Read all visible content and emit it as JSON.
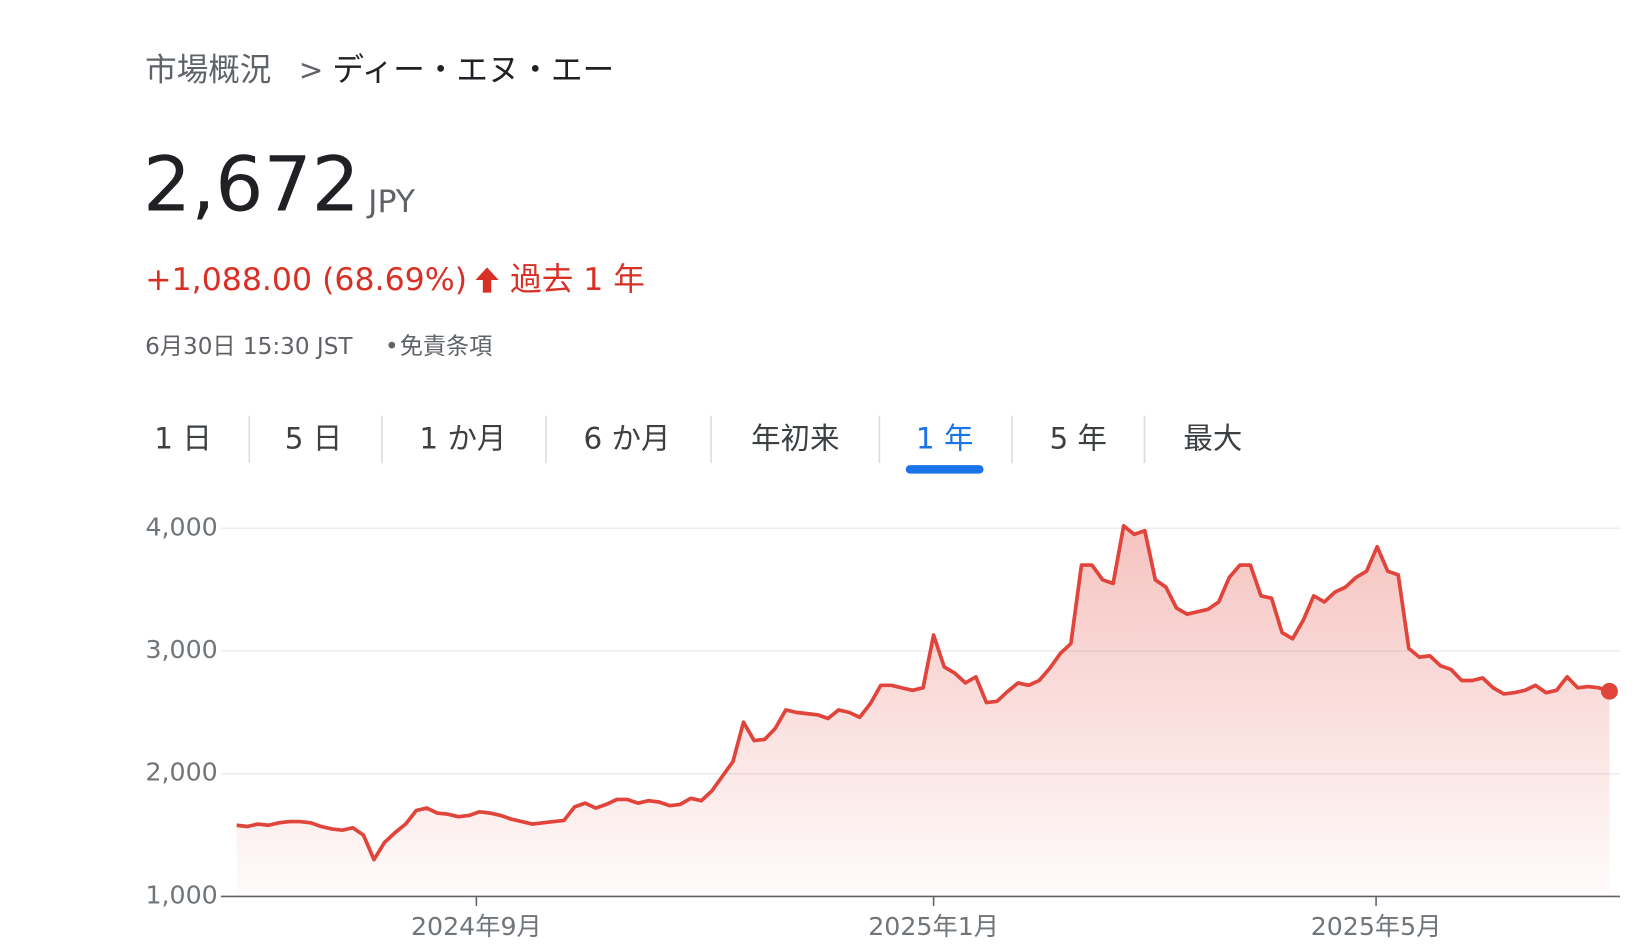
{
  "breadcrumb": {
    "parent": "市場概況",
    "separator": ">",
    "current": "ディー・エヌ・エー"
  },
  "price": "2,672",
  "currency": "JPY",
  "change": "+1,088.00 (68.69%)",
  "period": "過去 1 年",
  "timestamp": "6月30日 15:30 JST",
  "bullet": "•",
  "disclaimer": "免責条項",
  "tabs": [
    "1 日",
    "5 日",
    "1 か月",
    "6 か月",
    "年初来",
    "1 年",
    "5 年",
    "最大"
  ],
  "selected_tab": 5,
  "chart_data": {
    "type": "line",
    "color": "#e0443a",
    "values": [
      1580,
      1570,
      1590,
      1580,
      1600,
      1610,
      1610,
      1600,
      1570,
      1550,
      1540,
      1560,
      1500,
      1300,
      1440,
      1520,
      1590,
      1700,
      1720,
      1680,
      1670,
      1650,
      1660,
      1690,
      1680,
      1660,
      1630,
      1610,
      1590,
      1600,
      1610,
      1620,
      1730,
      1760,
      1720,
      1750,
      1790,
      1790,
      1760,
      1780,
      1770,
      1740,
      1750,
      1800,
      1780,
      1860,
      1980,
      2100,
      2420,
      2270,
      2280,
      2370,
      2520,
      2500,
      2490,
      2480,
      2450,
      2520,
      2500,
      2460,
      2570,
      2720,
      2720,
      2700,
      2680,
      2700,
      3130,
      2870,
      2820,
      2740,
      2790,
      2580,
      2590,
      2670,
      2740,
      2720,
      2760,
      2860,
      2980,
      3060,
      3700,
      3700,
      3580,
      3550,
      4020,
      3950,
      3980,
      3580,
      3520,
      3350,
      3300,
      3320,
      3340,
      3400,
      3600,
      3700,
      3700,
      3450,
      3430,
      3150,
      3100,
      3250,
      3450,
      3400,
      3480,
      3520,
      3600,
      3650,
      3850,
      3650,
      3620,
      3020,
      2950,
      2960,
      2880,
      2850,
      2760,
      2760,
      2780,
      2700,
      2650,
      2660,
      2680,
      2720,
      2660,
      2680,
      2790,
      2700,
      2710,
      2700,
      2672
    ],
    "xlim": [
      0,
      130
    ],
    "xticks": [
      {
        "value": 22.7,
        "label": "2024年9月"
      },
      {
        "value": 66,
        "label": "2025年1月"
      },
      {
        "value": 107.9,
        "label": "2025年5月"
      }
    ],
    "ylim": [
      1000,
      4000
    ],
    "yticks": [
      {
        "value": 1000,
        "label": "1,000"
      },
      {
        "value": 2000,
        "label": "2,000"
      },
      {
        "value": 3000,
        "label": "3,000"
      },
      {
        "value": 4000,
        "label": "4,000"
      }
    ],
    "grid": true
  }
}
